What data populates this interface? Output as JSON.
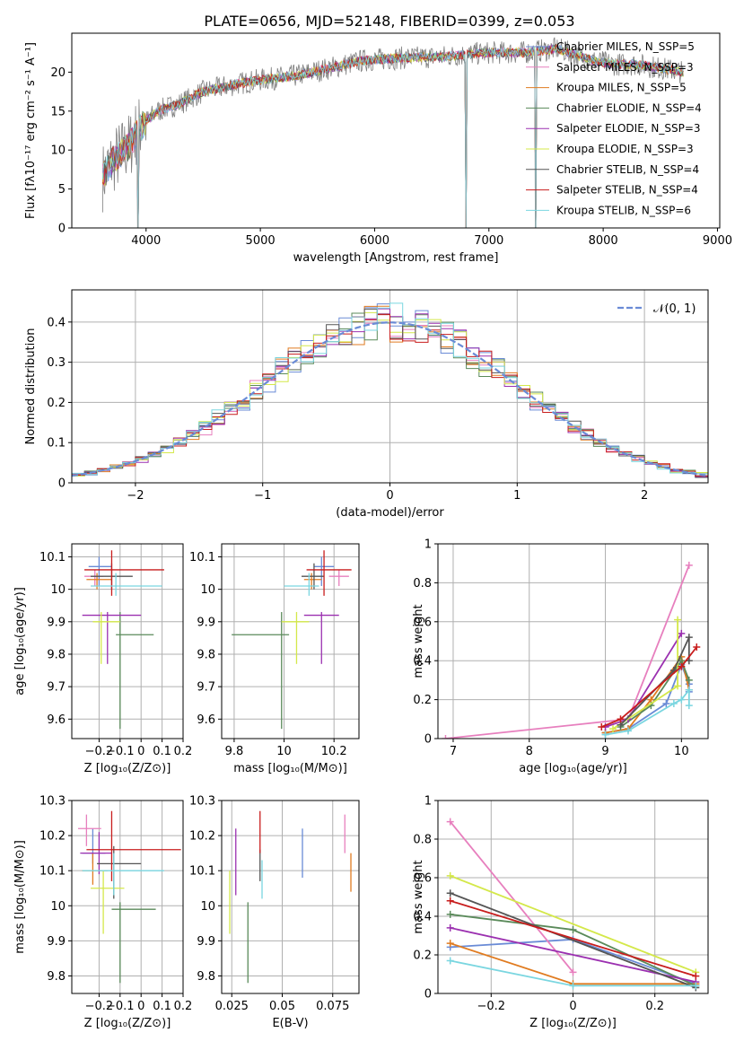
{
  "title": "PLATE=0656, MJD=52148, FIBERID=0399, z=0.053",
  "colors": {
    "c0": "#6a8bd6",
    "c1": "#e77fbe",
    "c2": "#e07b20",
    "c3": "#5a8a5a",
    "c4": "#9b30b0",
    "c5": "#d4e84a",
    "c6": "#555555",
    "c7": "#c81d1d",
    "c8": "#7ad6e0",
    "data": "#808080",
    "grid": "#b0b0b0"
  },
  "chart_data": [
    {
      "type": "line",
      "xlabel": "wavelength [Angstrom, rest frame]",
      "ylabel": "Flux [fλ10⁻¹⁷ erg cm⁻² s⁻¹ A⁻¹]",
      "xlim": [
        3350,
        9020
      ],
      "ylim": [
        0,
        25
      ],
      "xticks": [
        4000,
        5000,
        6000,
        7000,
        8000,
        9000
      ],
      "yticks": [
        0,
        5,
        10,
        15,
        20
      ],
      "grid": false,
      "legend": "upper right",
      "legend_entries": [
        "Chabrier MILES, N_SSP=5",
        "Salpeter MILES, N_SSP=3",
        "Kroupa MILES, N_SSP=5",
        "Chabrier ELODIE, N_SSP=4",
        "Salpeter ELODIE, N_SSP=3",
        "Kroupa ELODIE, N_SSP=3",
        "Chabrier STELIB, N_SSP=4",
        "Salpeter STELIB, N_SSP=4",
        "Kroupa STELIB, N_SSP=6"
      ],
      "spectrum_trend": [
        [
          3620,
          6.5
        ],
        [
          3700,
          8.5
        ],
        [
          3850,
          10.5
        ],
        [
          3950,
          13
        ],
        [
          4100,
          15
        ],
        [
          4300,
          16
        ],
        [
          4500,
          17.5
        ],
        [
          4800,
          18.5
        ],
        [
          5000,
          19
        ],
        [
          5300,
          19.5
        ],
        [
          5600,
          20.5
        ],
        [
          5900,
          21.5
        ],
        [
          6200,
          21.8
        ],
        [
          6600,
          22
        ],
        [
          7000,
          22.5
        ],
        [
          7300,
          22.5
        ],
        [
          7600,
          23
        ],
        [
          7900,
          21.5
        ],
        [
          8100,
          21
        ],
        [
          8300,
          21
        ],
        [
          8500,
          20.5
        ],
        [
          8700,
          20
        ]
      ],
      "absorption_features": [
        [
          3930,
          0
        ],
        [
          6800,
          0
        ],
        [
          7410,
          0
        ]
      ]
    },
    {
      "type": "histogram",
      "xlabel": "(data-model)/error",
      "ylabel": "Normed distribution",
      "xlim": [
        -2.5,
        2.5
      ],
      "ylim": [
        0,
        0.48
      ],
      "xticks": [
        -2,
        -1,
        0,
        1,
        2
      ],
      "yticks": [
        0.0,
        0.1,
        0.2,
        0.3,
        0.4
      ],
      "grid": true,
      "legend": "upper right",
      "legend_entries": [
        "𝒩(0, 1)"
      ],
      "bins": [
        -2.5,
        2.5,
        50
      ]
    },
    {
      "type": "scatter",
      "xlabel": "Z [log₁₀(Z/Z⊙)]",
      "ylabel": "age  [log₁₀(age/yr)]",
      "xlim": [
        -0.33,
        0.2
      ],
      "ylim": [
        9.54,
        10.14
      ],
      "xticks": [
        -0.2,
        -0.1,
        0.0,
        0.1,
        0.2
      ],
      "yticks": [
        9.6,
        9.7,
        9.8,
        9.9,
        10.0,
        10.1
      ],
      "grid": true,
      "points": [
        {
          "x": -0.2,
          "y": 10.07,
          "xerr": [
            0.05,
            0.06
          ],
          "yerr": [
            0.06,
            0.03
          ]
        },
        {
          "x": -0.22,
          "y": 10.04,
          "xerr": [
            0.05,
            0.04
          ],
          "yerr": [
            0.03,
            0.02
          ]
        },
        {
          "x": -0.21,
          "y": 10.03,
          "xerr": [
            0.05,
            0.07
          ],
          "yerr": [
            0.03,
            0.02
          ]
        },
        {
          "x": -0.1,
          "y": 9.86,
          "xerr": [
            0.02,
            0.16
          ],
          "yerr": [
            0.29,
            0.07
          ]
        },
        {
          "x": -0.16,
          "y": 9.92,
          "xerr": [
            0.12,
            0.16
          ],
          "yerr": [
            0.15,
            0.01
          ]
        },
        {
          "x": -0.19,
          "y": 9.9,
          "xerr": [
            0.04,
            0.09
          ],
          "yerr": [
            0.13,
            0.03
          ]
        },
        {
          "x": -0.14,
          "y": 10.04,
          "xerr": [
            0.1,
            0.1
          ],
          "yerr": [
            0.04,
            0.04
          ]
        },
        {
          "x": -0.14,
          "y": 10.06,
          "xerr": [
            0.13,
            0.25
          ],
          "yerr": [
            0.08,
            0.06
          ]
        },
        {
          "x": -0.12,
          "y": 10.01,
          "xerr": [
            0.12,
            0.22
          ],
          "yerr": [
            0.03,
            0.04
          ]
        }
      ]
    },
    {
      "type": "scatter",
      "xlabel": "mass [log₁₀(M/M⊙)]",
      "ylabel": "",
      "xlim": [
        9.75,
        10.3
      ],
      "ylim": [
        9.54,
        10.14
      ],
      "xticks": [
        9.8,
        10.0,
        10.2
      ],
      "yticks": [
        9.6,
        9.7,
        9.8,
        9.9,
        10.0,
        10.1
      ],
      "grid": true,
      "points": [
        {
          "x": 10.15,
          "y": 10.07,
          "xerr": [
            0.03,
            0.05
          ],
          "yerr": [
            0.06,
            0.03
          ]
        },
        {
          "x": 10.22,
          "y": 10.04,
          "xerr": [
            0.04,
            0.04
          ],
          "yerr": [
            0.03,
            0.02
          ]
        },
        {
          "x": 10.11,
          "y": 10.03,
          "xerr": [
            0.03,
            0.04
          ],
          "yerr": [
            0.03,
            0.02
          ]
        },
        {
          "x": 9.99,
          "y": 9.86,
          "xerr": [
            0.2,
            0.03
          ],
          "yerr": [
            0.29,
            0.07
          ]
        },
        {
          "x": 10.15,
          "y": 9.92,
          "xerr": [
            0.07,
            0.07
          ],
          "yerr": [
            0.15,
            0.01
          ]
        },
        {
          "x": 10.05,
          "y": 9.9,
          "xerr": [
            0.06,
            0.05
          ],
          "yerr": [
            0.13,
            0.03
          ]
        },
        {
          "x": 10.12,
          "y": 10.04,
          "xerr": [
            0.05,
            0.04
          ],
          "yerr": [
            0.04,
            0.04
          ]
        },
        {
          "x": 10.16,
          "y": 10.06,
          "xerr": [
            0.07,
            0.11
          ],
          "yerr": [
            0.08,
            0.06
          ]
        },
        {
          "x": 10.1,
          "y": 10.01,
          "xerr": [
            0.1,
            0.04
          ],
          "yerr": [
            0.03,
            0.04
          ]
        }
      ]
    },
    {
      "type": "line",
      "xlabel": "age  [log₁₀(age/yr)]",
      "ylabel": "mass weight",
      "xlim": [
        6.8,
        10.35
      ],
      "ylim": [
        0,
        1.0
      ],
      "xticks": [
        7,
        8,
        9,
        10
      ],
      "yticks": [
        0.0,
        0.2,
        0.4,
        0.6,
        0.8,
        1.0
      ],
      "grid": true,
      "series": [
        {
          "x": [
            9.0,
            9.3,
            9.8,
            10.0,
            10.1,
            10.1
          ],
          "y": [
            0.03,
            0.05,
            0.18,
            0.38,
            0.28,
            0.24
          ]
        },
        {
          "x": [
            6.9,
            9.3,
            10.1
          ],
          "y": [
            0.0,
            0.1,
            0.89
          ]
        },
        {
          "x": [
            9.0,
            9.3,
            9.6,
            10.0,
            10.1
          ],
          "y": [
            0.03,
            0.05,
            0.2,
            0.42,
            0.25
          ]
        },
        {
          "x": [
            9.2,
            9.6,
            10.0,
            10.1
          ],
          "y": [
            0.06,
            0.17,
            0.4,
            0.3
          ]
        },
        {
          "x": [
            9.0,
            9.3,
            10.0
          ],
          "y": [
            0.06,
            0.1,
            0.54
          ]
        },
        {
          "x": [
            9.1,
            9.95,
            9.95
          ],
          "y": [
            0.05,
            0.27,
            0.61
          ]
        },
        {
          "x": [
            9.2,
            9.9,
            10.1,
            10.1
          ],
          "y": [
            0.07,
            0.35,
            0.52,
            0.4
          ]
        },
        {
          "x": [
            8.95,
            9.2,
            10.0,
            10.2
          ],
          "y": [
            0.06,
            0.1,
            0.37,
            0.47
          ]
        },
        {
          "x": [
            9.0,
            9.3,
            9.9,
            10.0,
            10.1,
            10.1
          ],
          "y": [
            0.02,
            0.04,
            0.18,
            0.2,
            0.25,
            0.17
          ]
        }
      ]
    },
    {
      "type": "scatter",
      "xlabel": "Z [log₁₀(Z/Z⊙)]",
      "ylabel": "mass [log₁₀(M/M⊙)]",
      "xlim": [
        -0.33,
        0.2
      ],
      "ylim": [
        9.75,
        10.3
      ],
      "xticks": [
        -0.2,
        -0.1,
        0.0,
        0.1,
        0.2
      ],
      "yticks": [
        9.8,
        9.9,
        10.0,
        10.1,
        10.2,
        10.3
      ],
      "grid": true,
      "points": [
        {
          "x": -0.23,
          "y": 10.15,
          "xerr": [
            0.05,
            0.06
          ],
          "yerr": [
            0.03,
            0.07
          ]
        },
        {
          "x": -0.26,
          "y": 10.22,
          "xerr": [
            0.04,
            0.07
          ],
          "yerr": [
            0.05,
            0.04
          ]
        },
        {
          "x": -0.23,
          "y": 10.1,
          "xerr": [
            0.05,
            0.07
          ],
          "yerr": [
            0.04,
            0.05
          ]
        },
        {
          "x": -0.1,
          "y": 9.99,
          "xerr": [
            0.04,
            0.17
          ],
          "yerr": [
            0.21,
            0.02
          ]
        },
        {
          "x": -0.2,
          "y": 10.15,
          "xerr": [
            0.09,
            0.06
          ],
          "yerr": [
            0.06,
            0.06
          ]
        },
        {
          "x": -0.18,
          "y": 10.05,
          "xerr": [
            0.06,
            0.1
          ],
          "yerr": [
            0.13,
            0.05
          ]
        },
        {
          "x": -0.13,
          "y": 10.12,
          "xerr": [
            0.08,
            0.13
          ],
          "yerr": [
            0.1,
            0.05
          ]
        },
        {
          "x": -0.14,
          "y": 10.16,
          "xerr": [
            0.12,
            0.33
          ],
          "yerr": [
            0.09,
            0.11
          ]
        },
        {
          "x": -0.13,
          "y": 10.1,
          "xerr": [
            0.15,
            0.24
          ],
          "yerr": [
            0.07,
            0.05
          ]
        }
      ]
    },
    {
      "type": "scatter",
      "xlabel": "E(B-V)",
      "ylabel": "",
      "xlim": [
        0.02,
        0.088
      ],
      "ylim": [
        9.75,
        10.3
      ],
      "xticks": [
        0.025,
        0.05,
        0.075
      ],
      "yticks": [
        9.8,
        9.9,
        10.0,
        10.1,
        10.2,
        10.3
      ],
      "grid": true,
      "points": [
        {
          "x": 0.06,
          "y": 10.15,
          "xerr": [
            0,
            0
          ],
          "yerr": [
            0.07,
            0.07
          ]
        },
        {
          "x": 0.081,
          "y": 10.22,
          "xerr": [
            0,
            0
          ],
          "yerr": [
            0.07,
            0.04
          ]
        },
        {
          "x": 0.084,
          "y": 10.1,
          "xerr": [
            0,
            0
          ],
          "yerr": [
            0.06,
            0.05
          ]
        },
        {
          "x": 0.033,
          "y": 9.89,
          "xerr": [
            0,
            0
          ],
          "yerr": [
            0.11,
            0.12
          ]
        },
        {
          "x": 0.027,
          "y": 10.12,
          "xerr": [
            0,
            0
          ],
          "yerr": [
            0.09,
            0.1
          ]
        },
        {
          "x": 0.024,
          "y": 10.03,
          "xerr": [
            0,
            0
          ],
          "yerr": [
            0.11,
            0.07
          ]
        },
        {
          "x": 0.039,
          "y": 10.12,
          "xerr": [
            0,
            0
          ],
          "yerr": [
            0.05,
            0.04
          ]
        },
        {
          "x": 0.039,
          "y": 10.19,
          "xerr": [
            0,
            0
          ],
          "yerr": [
            0.04,
            0.08
          ]
        },
        {
          "x": 0.04,
          "y": 10.08,
          "xerr": [
            0,
            0
          ],
          "yerr": [
            0.06,
            0.05
          ]
        }
      ]
    },
    {
      "type": "line",
      "xlabel": "Z [log₁₀(Z/Z⊙)]",
      "ylabel": "mass weight",
      "xlim": [
        -0.33,
        0.33
      ],
      "ylim": [
        0,
        1.0
      ],
      "xticks": [
        -0.2,
        0.0,
        0.2
      ],
      "yticks": [
        0.0,
        0.2,
        0.4,
        0.6,
        0.8,
        1.0
      ],
      "grid": true,
      "series": [
        {
          "x": [
            -0.3,
            0.0,
            0.3
          ],
          "y": [
            0.24,
            0.28,
            0.05
          ]
        },
        {
          "x": [
            -0.3,
            0.0
          ],
          "y": [
            0.89,
            0.11
          ]
        },
        {
          "x": [
            -0.3,
            0.0,
            0.3
          ],
          "y": [
            0.26,
            0.05,
            0.05
          ]
        },
        {
          "x": [
            -0.3,
            0.0,
            0.3
          ],
          "y": [
            0.41,
            0.33,
            0.04
          ]
        },
        {
          "x": [
            -0.3,
            0.3
          ],
          "y": [
            0.34,
            0.06
          ]
        },
        {
          "x": [
            -0.3,
            0.3
          ],
          "y": [
            0.61,
            0.11
          ]
        },
        {
          "x": [
            -0.3,
            0.3
          ],
          "y": [
            0.52,
            0.03
          ]
        },
        {
          "x": [
            -0.3,
            0.3
          ],
          "y": [
            0.48,
            0.09
          ]
        },
        {
          "x": [
            -0.3,
            0.0,
            0.3
          ],
          "y": [
            0.17,
            0.04,
            0.04
          ]
        }
      ]
    }
  ]
}
